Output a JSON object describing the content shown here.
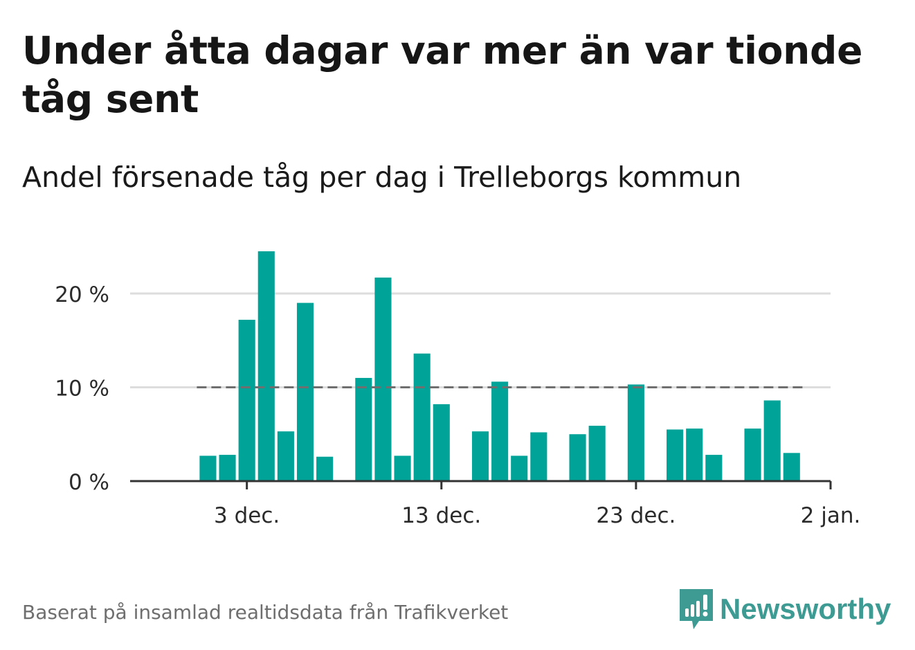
{
  "title": "Under åtta dagar var mer än var tionde tåg sent",
  "subtitle": "Andel försenade tåg per dag i Trelleborgs kommun",
  "source": "Baserat på insamlad realtidsdata från Trafikverket",
  "brand": "Newsworthy",
  "colors": {
    "bar": "#00a398",
    "axis": "#333333",
    "grid": "#dddddd",
    "threshold": "#6f6f6f",
    "brand": "#3d9b93"
  },
  "chart_data": {
    "type": "bar",
    "x": [
      "2023-12-01",
      "2023-12-02",
      "2023-12-03",
      "2023-12-04",
      "2023-12-05",
      "2023-12-06",
      "2023-12-07",
      "2023-12-08",
      "2023-12-09",
      "2023-12-10",
      "2023-12-11",
      "2023-12-12",
      "2023-12-13",
      "2023-12-14",
      "2023-12-15",
      "2023-12-16",
      "2023-12-17",
      "2023-12-18",
      "2023-12-19",
      "2023-12-20",
      "2023-12-21",
      "2023-12-22",
      "2023-12-23",
      "2023-12-24",
      "2023-12-25",
      "2023-12-26",
      "2023-12-27",
      "2023-12-28",
      "2023-12-29",
      "2023-12-30",
      "2023-12-31"
    ],
    "values": [
      2.7,
      2.8,
      17.2,
      24.5,
      5.3,
      19.0,
      2.6,
      null,
      11.0,
      21.7,
      2.7,
      13.6,
      8.2,
      null,
      5.3,
      10.6,
      2.7,
      5.2,
      null,
      5.0,
      5.9,
      null,
      10.3,
      null,
      5.5,
      5.6,
      2.8,
      null,
      5.6,
      8.6,
      3.0
    ],
    "threshold": 10,
    "ylim": [
      0,
      25
    ],
    "yticks": [
      0,
      10,
      20
    ],
    "ytick_labels": [
      "0 %",
      "10 %",
      "20 %"
    ],
    "xticks": [
      "2023-12-03",
      "2023-12-13",
      "2023-12-23",
      "2024-01-02"
    ],
    "xtick_labels": [
      "3 dec.",
      "13 dec.",
      "23 dec.",
      "2 jan."
    ],
    "xlim": [
      "2023-11-27",
      "2024-01-02"
    ],
    "grid": true,
    "xlabel": "",
    "ylabel": ""
  }
}
